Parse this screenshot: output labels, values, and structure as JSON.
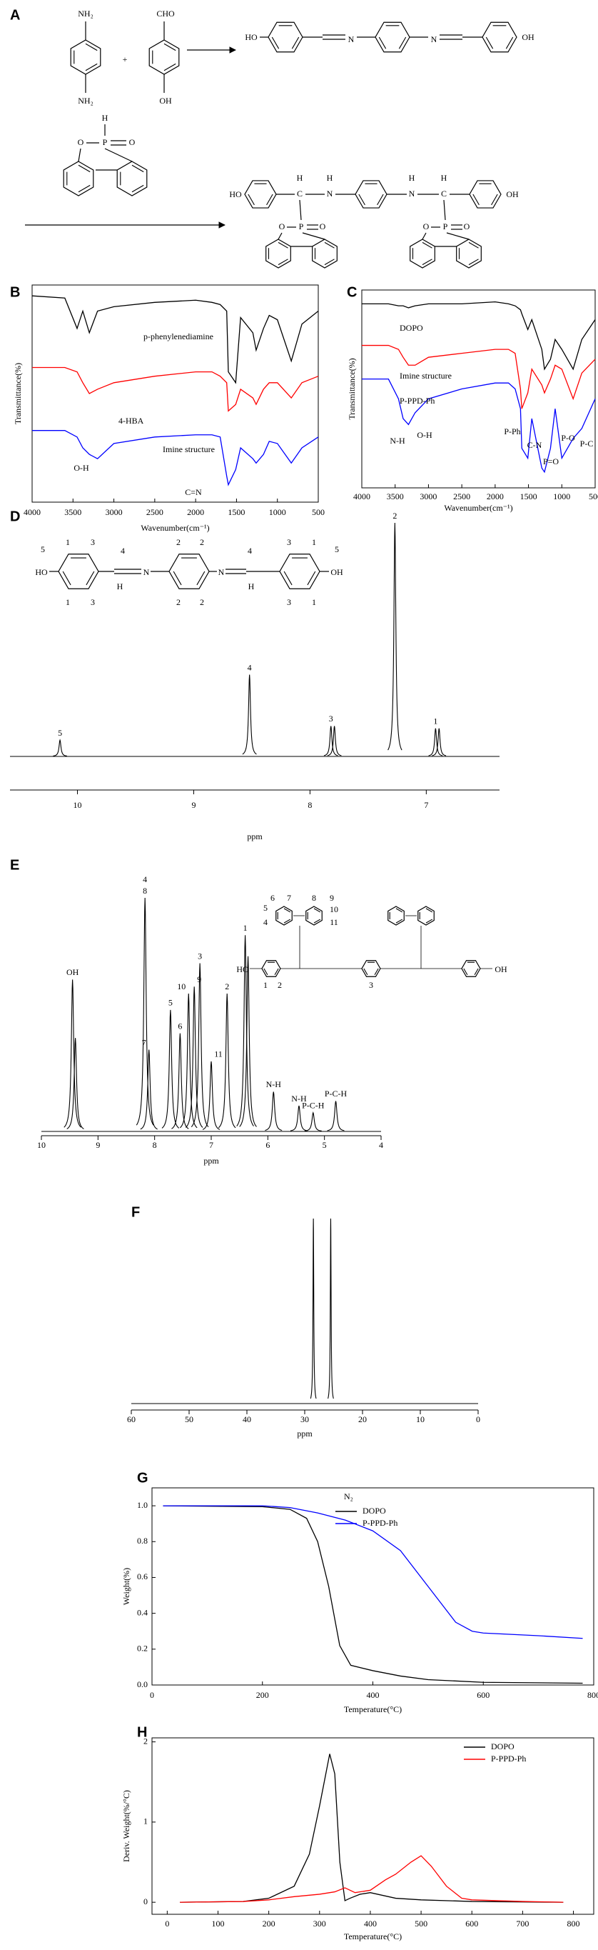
{
  "panel_labels": [
    "A",
    "B",
    "C",
    "D",
    "E",
    "F",
    "G",
    "H"
  ],
  "scheme": {
    "labels": [
      "NH₂",
      "NH₂",
      "+",
      "CHO",
      "OH",
      "HO",
      "N",
      "N",
      "OH",
      "H",
      "P",
      "O",
      "O",
      "HO",
      "C",
      "H",
      "H",
      "N",
      "N",
      "H",
      "C",
      "H",
      "OH",
      "O",
      "P",
      "O",
      "O",
      "P",
      "O"
    ]
  },
  "chart_data": [
    {
      "type": "line",
      "x_label": "Wavenumber(cm⁻¹)",
      "y_label": "Transmittance(%)",
      "x": [
        4000,
        3600,
        3450,
        3380,
        3300,
        3200,
        3000,
        2500,
        2000,
        1800,
        1700,
        1620,
        1600,
        1510,
        1450,
        1300,
        1260,
        1170,
        1100,
        1000,
        830,
        700,
        500
      ],
      "xlim": [
        4000,
        500
      ],
      "xticks": [
        4000,
        3500,
        3000,
        2500,
        2000,
        1500,
        1000,
        500
      ],
      "ylim": [
        0,
        100
      ],
      "frame": true,
      "legend": "inline",
      "series": [
        {
          "name": "p-phenylenediamine",
          "color": "#000000",
          "values": [
            95,
            94,
            80,
            88,
            78,
            88,
            90,
            92,
            93,
            92,
            91,
            88,
            60,
            55,
            85,
            78,
            70,
            80,
            86,
            84,
            65,
            82,
            88
          ]
        },
        {
          "name": "4-HBA",
          "color": "#ff0000",
          "values": [
            62,
            62,
            60,
            55,
            50,
            52,
            55,
            58,
            60,
            60,
            58,
            55,
            42,
            45,
            52,
            48,
            45,
            52,
            55,
            55,
            48,
            55,
            58
          ]
        },
        {
          "name": "Imine structure",
          "color": "#0000ff",
          "values": [
            33,
            33,
            30,
            25,
            22,
            20,
            27,
            30,
            31,
            31,
            30,
            12,
            8,
            15,
            25,
            20,
            18,
            22,
            28,
            27,
            18,
            25,
            30
          ]
        }
      ],
      "annotations": [
        "O-H",
        "C=N"
      ]
    },
    {
      "type": "line",
      "x_label": "Wavenumber(cm⁻¹)",
      "y_label": "Transmittance(%)",
      "x": [
        4000,
        3600,
        3450,
        3380,
        3300,
        3200,
        3000,
        2500,
        2000,
        1800,
        1700,
        1620,
        1600,
        1510,
        1450,
        1300,
        1260,
        1170,
        1100,
        1000,
        830,
        700,
        500
      ],
      "xlim": [
        4000,
        500
      ],
      "xticks": [
        4000,
        3500,
        3000,
        2500,
        2000,
        1500,
        1000,
        500
      ],
      "ylim": [
        0,
        100
      ],
      "frame": true,
      "legend": "inline",
      "series": [
        {
          "name": "DOPO",
          "color": "#000000",
          "values": [
            93,
            93,
            92,
            92,
            91,
            92,
            93,
            93,
            94,
            93,
            92,
            90,
            88,
            80,
            85,
            70,
            60,
            65,
            75,
            70,
            60,
            75,
            85
          ]
        },
        {
          "name": "Imine structure",
          "color": "#ff0000",
          "values": [
            72,
            72,
            70,
            66,
            62,
            62,
            66,
            68,
            70,
            70,
            68,
            50,
            40,
            48,
            60,
            52,
            48,
            55,
            62,
            60,
            45,
            58,
            65
          ]
        },
        {
          "name": "P-PPD-Ph",
          "color": "#0000ff",
          "values": [
            55,
            55,
            45,
            35,
            32,
            38,
            45,
            50,
            53,
            53,
            50,
            40,
            20,
            15,
            35,
            10,
            8,
            20,
            40,
            15,
            25,
            30,
            45
          ]
        }
      ],
      "annotations": [
        "N-H",
        "O-H",
        "P-Ph",
        "C-N",
        "P=O",
        "P-O",
        "P-C"
      ]
    },
    {
      "type": "nmr",
      "x_label": "ppm",
      "xlim": [
        10.58,
        6.37
      ],
      "xticks": [
        10,
        9,
        8,
        7
      ],
      "ylim": [
        0,
        100
      ],
      "color": "#000000",
      "x": [
        10.15,
        8.52,
        7.82,
        7.79,
        7.27,
        6.92,
        6.89
      ],
      "values": [
        7,
        35,
        13,
        13,
        100,
        12,
        12
      ],
      "peak_labels": [
        "5",
        "4",
        "3",
        null,
        "2",
        "1",
        null
      ],
      "structure_labels": [
        "5",
        "HO",
        "1",
        "3",
        "1",
        "3",
        "4",
        "H",
        "N",
        "2",
        "2",
        "2",
        "2",
        "N",
        "4",
        "H",
        "3",
        "1",
        "3",
        "1",
        "OH",
        "5"
      ]
    },
    {
      "type": "nmr",
      "x_label": "ppm",
      "xlim": [
        10,
        4
      ],
      "xticks": [
        10,
        9,
        8,
        7,
        6,
        5,
        4
      ],
      "ylim": [
        0,
        100
      ],
      "color": "#000000",
      "x": [
        9.45,
        9.4,
        8.17,
        8.1,
        7.72,
        7.55,
        7.4,
        7.3,
        7.2,
        7.0,
        6.72,
        6.4,
        6.35,
        5.9,
        5.45,
        5.2,
        4.8
      ],
      "values": [
        65,
        40,
        100,
        35,
        52,
        42,
        59,
        62,
        72,
        30,
        59,
        84,
        75,
        17,
        11,
        8,
        13
      ],
      "peak_labels": [
        "OH",
        null,
        [
          "4",
          "8"
        ],
        "7",
        "5",
        "6",
        "10",
        "9",
        "3",
        "11",
        "2",
        "1",
        null,
        "N-H",
        "N-H",
        "P-C-H",
        "P-C-H"
      ],
      "structure_labels": [
        "6",
        "7",
        "8",
        "9",
        "5",
        "4",
        "10",
        "11",
        "1",
        "2",
        "3",
        "HO",
        "OH"
      ]
    },
    {
      "type": "nmr",
      "x_label": "ppm",
      "xlim": [
        60,
        0
      ],
      "xticks": [
        60,
        50,
        40,
        30,
        20,
        10,
        0
      ],
      "ylim": [
        0,
        100
      ],
      "color": "#000000",
      "x": [
        28.5,
        25.5
      ],
      "values": [
        100,
        100
      ]
    },
    {
      "type": "line",
      "x_label": "Temperature(°C)",
      "y_label": "Weight(%)",
      "xlim": [
        0,
        800
      ],
      "xticks": [
        0,
        200,
        400,
        600,
        800
      ],
      "ylim": [
        0,
        1.1
      ],
      "yticks": [
        {
          "value": 0,
          "label": "0.0"
        },
        {
          "value": 0.2,
          "label": "0.2"
        },
        {
          "value": 0.4,
          "label": "0.4"
        },
        {
          "value": 0.6,
          "label": "0.6"
        },
        {
          "value": 0.8,
          "label": "0.8"
        },
        {
          "value": 1,
          "label": "1.0"
        }
      ],
      "frame": true,
      "legend": "top-right",
      "legend_title": "N₂",
      "series": [
        {
          "name": "DOPO",
          "color": "#000000",
          "x": [
            20,
            200,
            250,
            280,
            300,
            320,
            340,
            360,
            400,
            450,
            500,
            600,
            780
          ],
          "values": [
            1,
            0.995,
            0.98,
            0.93,
            0.8,
            0.55,
            0.22,
            0.11,
            0.08,
            0.05,
            0.03,
            0.015,
            0.01
          ]
        },
        {
          "name": "P-PPD-Ph",
          "color": "#0000ff",
          "x": [
            20,
            200,
            250,
            300,
            350,
            400,
            450,
            500,
            550,
            580,
            600,
            700,
            780
          ],
          "values": [
            1,
            1,
            0.99,
            0.96,
            0.92,
            0.86,
            0.75,
            0.55,
            0.35,
            0.3,
            0.29,
            0.275,
            0.26
          ]
        }
      ]
    },
    {
      "type": "line",
      "x_label": "Temperature(°C)",
      "y_label": "Deriv. Weight(%/°C)",
      "xlim": [
        -30,
        840
      ],
      "xticks": [
        0,
        100,
        200,
        300,
        400,
        500,
        600,
        700,
        800
      ],
      "ylim": [
        -0.15,
        2.05
      ],
      "yticks": [
        0,
        1,
        2
      ],
      "frame": true,
      "legend": "top-right",
      "series": [
        {
          "name": "DOPO",
          "color": "#000000",
          "x": [
            25,
            150,
            200,
            250,
            280,
            300,
            320,
            330,
            340,
            350,
            360,
            380,
            400,
            450,
            500,
            600,
            780
          ],
          "values": [
            0,
            0.01,
            0.05,
            0.2,
            0.6,
            1.2,
            1.85,
            1.6,
            0.5,
            0.02,
            0.05,
            0.1,
            0.12,
            0.05,
            0.03,
            0.01,
            0
          ]
        },
        {
          "name": "P-PPD-Ph",
          "color": "#ff0000",
          "x": [
            25,
            150,
            200,
            250,
            300,
            330,
            350,
            370,
            400,
            430,
            450,
            480,
            500,
            520,
            550,
            580,
            600,
            700,
            780
          ],
          "values": [
            0,
            0.01,
            0.03,
            0.07,
            0.1,
            0.13,
            0.18,
            0.12,
            0.15,
            0.28,
            0.35,
            0.5,
            0.58,
            0.45,
            0.2,
            0.05,
            0.03,
            0.01,
            0
          ]
        }
      ]
    }
  ]
}
